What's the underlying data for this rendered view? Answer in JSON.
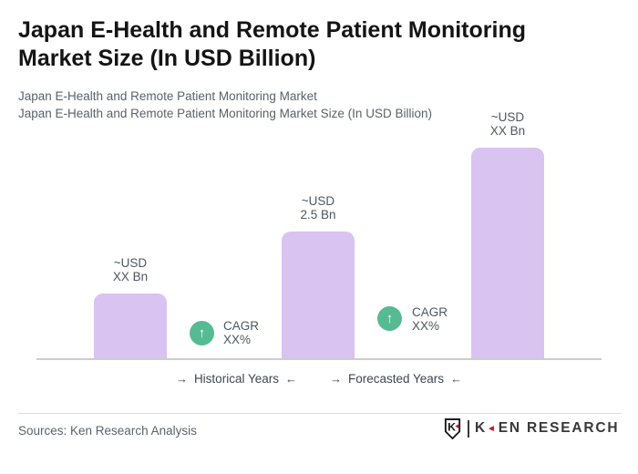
{
  "header": {
    "title": "Japan E-Health and Remote Patient Monitoring Market Size (In USD Billion)",
    "subtitle_line1": "Japan E-Health and Remote Patient Monitoring Market",
    "subtitle_line2": "Japan E-Health and Remote Patient Monitoring Market Size (In USD Billion)"
  },
  "chart_data": {
    "type": "bar",
    "title": "Japan E-Health and Remote Patient Monitoring Market Size (In USD Billion)",
    "unit": "USD Billion",
    "ylim": [
      0,
      4.5
    ],
    "grid": false,
    "bar_color": "#d9c3f1",
    "badge_color": "#56ba92",
    "baseline_color": "#cdcdcd",
    "bars": [
      {
        "label_line1": "~USD",
        "label_line2": "XX Bn",
        "value_text": "XX",
        "estimated_value": 1.28,
        "period": "Historical Years"
      },
      {
        "label_line1": "~USD",
        "label_line2": "2.5 Bn",
        "value_text": "2.5",
        "estimated_value": 2.5,
        "period": "Historical/Forecast boundary"
      },
      {
        "label_line1": "~USD",
        "label_line2": "XX Bn",
        "value_text": "XX",
        "estimated_value": 4.15,
        "period": "Forecasted Years"
      }
    ],
    "cagr_badges": [
      {
        "line1": "CAGR",
        "line2": "XX%",
        "arrow_glyph": "↑"
      },
      {
        "line1": "CAGR",
        "line2": "XX%",
        "arrow_glyph": "↑"
      }
    ],
    "x_axis": {
      "left_label": "Historical Years",
      "right_label": "Forecasted Years",
      "arrow_right": "→",
      "arrow_left": "←"
    }
  },
  "footer": {
    "sources": "Sources: Ken Research Analysis",
    "logo": {
      "shield_letter": "K",
      "brand_first": "K",
      "brand_triangle": "◄",
      "brand_rest": "EN RESEARCH",
      "accent_color": "#c21d21"
    }
  }
}
